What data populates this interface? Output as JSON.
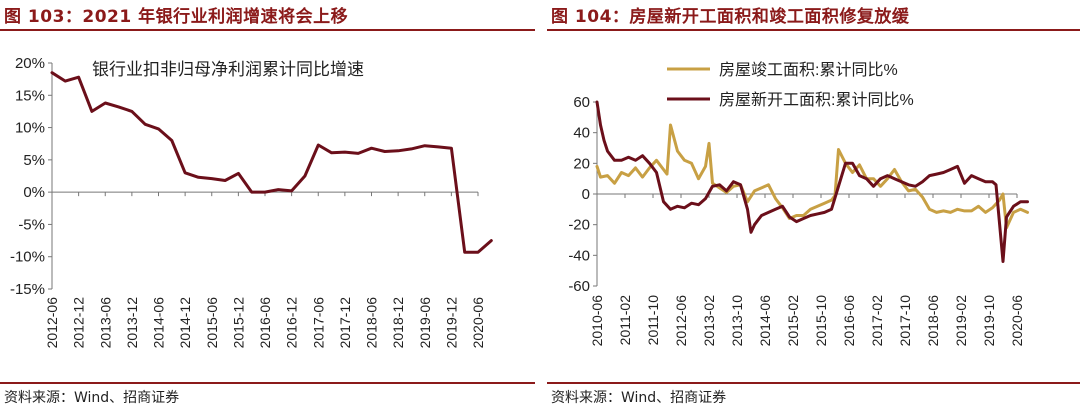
{
  "left": {
    "figure_title": "图 103：2021 年银行业利润增速将会上移",
    "source": "资料来源：Wind、招商证券"
  },
  "right": {
    "figure_title": "图 104：房屋新开工面积和竣工面积修复放缓",
    "source": "资料来源：Wind、招商证券"
  },
  "chart_data": [
    {
      "type": "line",
      "annotation": "银行业扣非归母净利润累计同比增速",
      "yunit": "%",
      "ylim": [
        -15,
        20
      ],
      "yticks": [
        -15,
        -10,
        -5,
        0,
        5,
        10,
        15,
        20
      ],
      "ytick_labels": [
        "-15%",
        "-10%",
        "-5%",
        "0%",
        "5%",
        "10%",
        "15%",
        "20%"
      ],
      "xlim": [
        "2012-06",
        "2020-06"
      ],
      "xticks": [
        "2012-06",
        "2012-12",
        "2013-06",
        "2013-12",
        "2014-06",
        "2014-12",
        "2015-06",
        "2015-12",
        "2016-06",
        "2016-12",
        "2017-06",
        "2017-12",
        "2018-06",
        "2018-12",
        "2019-06",
        "2019-12",
        "2020-06"
      ],
      "grid": false,
      "color": "#6B0F1A",
      "series": [
        {
          "x": [
            "2012-06",
            "2012-09",
            "2012-12",
            "2013-03",
            "2013-06",
            "2013-09",
            "2013-12",
            "2014-03",
            "2014-06",
            "2014-09",
            "2014-12",
            "2015-03",
            "2015-06",
            "2015-09",
            "2015-12",
            "2016-03",
            "2016-06",
            "2016-09",
            "2016-12",
            "2017-03",
            "2017-06",
            "2017-09",
            "2017-12",
            "2018-03",
            "2018-06",
            "2018-09",
            "2018-12",
            "2019-03",
            "2019-06",
            "2019-09",
            "2019-12",
            "2020-03",
            "2020-06",
            "2020-09"
          ],
          "values": [
            18.5,
            17.2,
            17.8,
            12.5,
            13.8,
            13.2,
            12.5,
            10.5,
            9.8,
            8.0,
            3.0,
            2.3,
            2.1,
            1.8,
            2.9,
            0.0,
            0.0,
            0.4,
            0.2,
            2.5,
            7.3,
            6.1,
            6.2,
            6.0,
            6.8,
            6.3,
            6.4,
            6.7,
            7.2,
            7.0,
            6.8,
            -9.3,
            -9.3,
            -7.5
          ]
        }
      ]
    },
    {
      "type": "line",
      "ylim": [
        -60,
        60
      ],
      "yticks": [
        -60,
        -40,
        -20,
        0,
        20,
        40,
        60
      ],
      "xlim": [
        "2010-06",
        "2020-06"
      ],
      "xticks": [
        "2010-06",
        "2011-02",
        "2011-10",
        "2012-06",
        "2013-02",
        "2013-10",
        "2014-06",
        "2015-02",
        "2015-10",
        "2016-06",
        "2017-02",
        "2017-10",
        "2018-06",
        "2019-02",
        "2019-10",
        "2020-06"
      ],
      "grid": false,
      "legend": "top-left",
      "series": [
        {
          "name": "房屋竣工面积:累计同比%",
          "color": "#C8A044",
          "x": [
            "2010-06",
            "2010-07",
            "2010-09",
            "2010-11",
            "2011-01",
            "2011-03",
            "2011-05",
            "2011-07",
            "2011-09",
            "2011-11",
            "2012-01",
            "2012-02",
            "2012-03",
            "2012-05",
            "2012-07",
            "2012-09",
            "2012-11",
            "2013-01",
            "2013-02",
            "2013-03",
            "2013-05",
            "2013-07",
            "2013-09",
            "2013-11",
            "2014-01",
            "2014-03",
            "2014-05",
            "2014-07",
            "2014-09",
            "2014-11",
            "2015-01",
            "2015-03",
            "2015-05",
            "2015-07",
            "2015-09",
            "2015-11",
            "2016-01",
            "2016-02",
            "2016-03",
            "2016-05",
            "2016-07",
            "2016-09",
            "2016-11",
            "2017-01",
            "2017-03",
            "2017-05",
            "2017-07",
            "2017-09",
            "2017-11",
            "2018-01",
            "2018-03",
            "2018-05",
            "2018-07",
            "2018-09",
            "2018-11",
            "2019-01",
            "2019-03",
            "2019-05",
            "2019-07",
            "2019-09",
            "2019-11",
            "2020-01",
            "2020-02",
            "2020-03",
            "2020-05",
            "2020-07",
            "2020-09"
          ],
          "values": [
            18,
            11,
            12,
            7,
            14,
            12,
            17,
            11,
            17,
            22,
            16,
            13,
            45,
            28,
            22,
            20,
            10,
            18,
            33,
            7,
            4,
            1,
            5,
            6,
            -5,
            2,
            4,
            6,
            -3,
            -9,
            -16,
            -14,
            -14,
            -10,
            -8,
            -6,
            -4,
            -1,
            29,
            20,
            14,
            19,
            10,
            10,
            5,
            10,
            16,
            8,
            2,
            3,
            -2,
            -10,
            -12,
            -11,
            -12,
            -10,
            -11,
            -11,
            -8,
            -12,
            -9,
            -4,
            0,
            -22,
            -12,
            -10,
            -12
          ]
        },
        {
          "name": "房屋新开工面积:累计同比%",
          "color": "#6B0F1A",
          "x": [
            "2010-06",
            "2010-07",
            "2010-08",
            "2010-09",
            "2010-11",
            "2011-01",
            "2011-03",
            "2011-05",
            "2011-07",
            "2011-09",
            "2011-11",
            "2012-01",
            "2012-03",
            "2012-05",
            "2012-07",
            "2012-09",
            "2012-11",
            "2013-01",
            "2013-03",
            "2013-05",
            "2013-07",
            "2013-09",
            "2013-11",
            "2014-01",
            "2014-02",
            "2014-03",
            "2014-05",
            "2014-07",
            "2014-09",
            "2014-11",
            "2015-01",
            "2015-03",
            "2015-05",
            "2015-07",
            "2015-09",
            "2015-11",
            "2016-01",
            "2016-03",
            "2016-05",
            "2016-07",
            "2016-09",
            "2016-11",
            "2017-01",
            "2017-03",
            "2017-05",
            "2017-07",
            "2017-09",
            "2017-11",
            "2018-01",
            "2018-03",
            "2018-05",
            "2018-07",
            "2018-09",
            "2018-11",
            "2019-01",
            "2019-03",
            "2019-05",
            "2019-07",
            "2019-09",
            "2019-11",
            "2019-12",
            "2020-02",
            "2020-03",
            "2020-05",
            "2020-07",
            "2020-09"
          ],
          "values": [
            60,
            45,
            35,
            28,
            22,
            22,
            24,
            22,
            25,
            20,
            14,
            -5,
            -10,
            -8,
            -9,
            -6,
            -7,
            -3,
            5,
            6,
            2,
            8,
            6,
            -10,
            -25,
            -20,
            -14,
            -12,
            -10,
            -8,
            -15,
            -18,
            -16,
            -14,
            -13,
            -12,
            -10,
            5,
            20,
            20,
            12,
            10,
            5,
            10,
            12,
            10,
            8,
            6,
            5,
            8,
            12,
            13,
            14,
            16,
            18,
            7,
            12,
            10,
            8,
            8,
            6,
            -44,
            -15,
            -8,
            -5,
            -5
          ]
        }
      ]
    }
  ]
}
